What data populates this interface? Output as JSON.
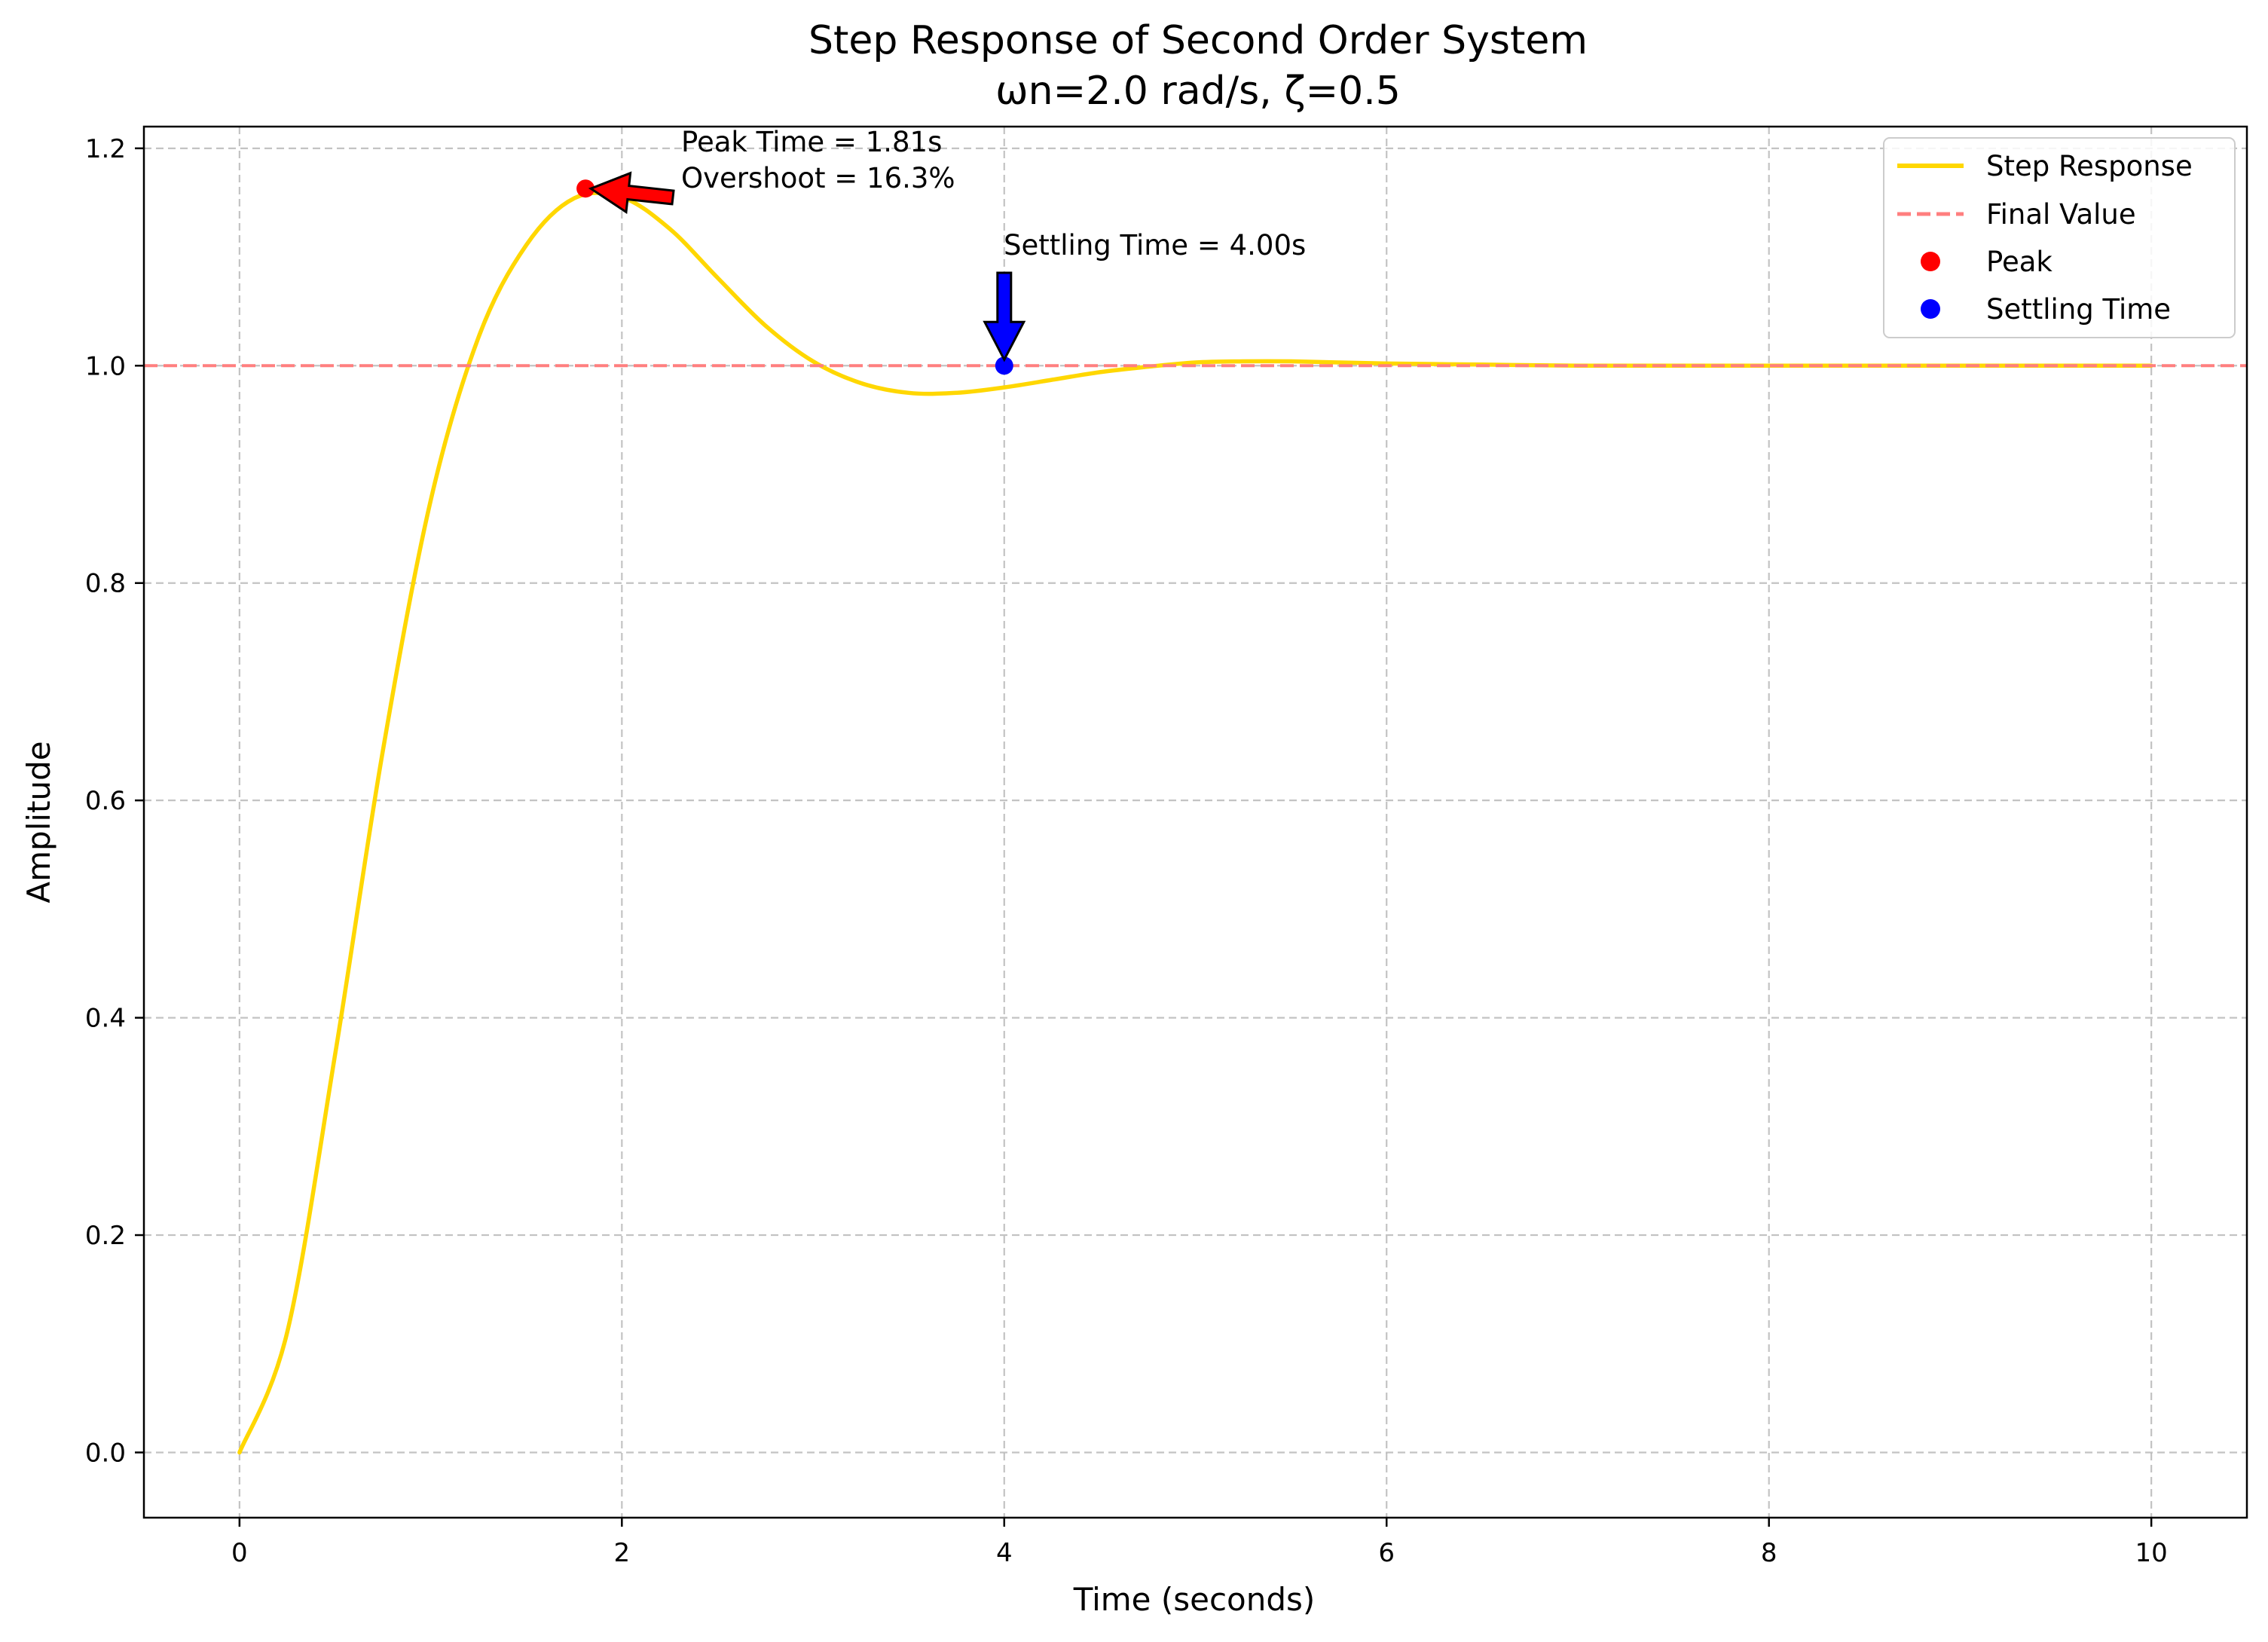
{
  "chart_data": {
    "type": "line",
    "title": "Step Response of Second Order System",
    "subtitle": "ωn=2.0 rad/s, ζ=0.5",
    "xlabel": "Time (seconds)",
    "ylabel": "Amplitude",
    "xlim": [
      -0.5,
      10.5
    ],
    "ylim": [
      -0.06,
      1.22
    ],
    "xticks": [
      0,
      2,
      4,
      6,
      8,
      10
    ],
    "xtick_labels": [
      "0",
      "2",
      "4",
      "6",
      "8",
      "10"
    ],
    "yticks": [
      0.0,
      0.2,
      0.4,
      0.6,
      0.8,
      1.0,
      1.2
    ],
    "ytick_labels": [
      "0.0",
      "0.2",
      "0.4",
      "0.6",
      "0.8",
      "1.0",
      "1.2"
    ],
    "grid": true,
    "legend_position": "top-right",
    "series": [
      {
        "name": "Step Response",
        "color": "#FFD700",
        "style": "solid",
        "x": [
          0,
          0.25,
          0.5,
          0.75,
          1.0,
          1.25,
          1.5,
          1.75,
          2.0,
          2.25,
          2.5,
          2.75,
          3.0,
          3.25,
          3.5,
          3.75,
          4.0,
          4.25,
          4.5,
          4.75,
          5.0,
          5.25,
          5.5,
          5.75,
          6.0,
          6.5,
          7.0,
          7.5,
          8.0,
          8.5,
          9.0,
          9.5,
          10.0
        ],
        "y": [
          0.0,
          0.111,
          0.366,
          0.646,
          0.876,
          1.026,
          1.111,
          1.154,
          1.155,
          1.126,
          1.081,
          1.037,
          1.004,
          0.984,
          0.975,
          0.975,
          0.98,
          0.987,
          0.994,
          0.999,
          1.003,
          1.004,
          1.004,
          1.003,
          1.002,
          1.001,
          1.0,
          1.0,
          1.0,
          1.0,
          1.0,
          1.0,
          1.0
        ]
      },
      {
        "name": "Final Value",
        "color": "#FF7F7F",
        "style": "dashed",
        "y": 1.0
      },
      {
        "name": "Peak",
        "color": "#FF0000",
        "style": "marker",
        "x": [
          1.81
        ],
        "y": [
          1.163
        ]
      },
      {
        "name": "Settling Time",
        "color": "#0000FF",
        "style": "marker",
        "x": [
          4.0
        ],
        "y": [
          1.0
        ]
      }
    ],
    "annotations": [
      {
        "text_lines": [
          "Peak Time = 1.81s",
          "Overshoot = 16.3%"
        ],
        "target_x": 1.81,
        "target_y": 1.163,
        "arrow_color": "#FF0000"
      },
      {
        "text_lines": [
          "Settling Time = 4.00s"
        ],
        "target_x": 4.0,
        "target_y": 1.0,
        "arrow_color": "#0000FF"
      }
    ]
  }
}
